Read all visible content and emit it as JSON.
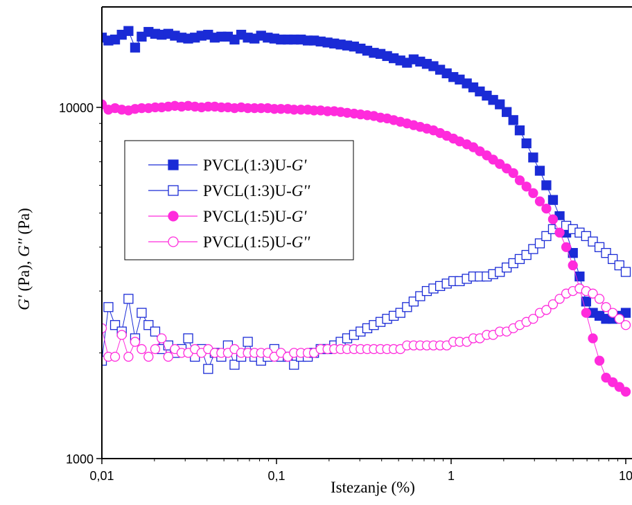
{
  "chart_data": {
    "type": "scatter",
    "xlabel": "Istezanje (%)",
    "ylabel": "G' (Pa), G'' (Pa)",
    "ylabel_parts": {
      "g1": "G'",
      "u1": " (Pa), ",
      "g2": "G''",
      "u2": " (Pa)"
    },
    "x_scale": "log",
    "y_scale": "log",
    "xlim": [
      0.01,
      10
    ],
    "ylim": [
      1000,
      20000
    ],
    "x_tick_labels": [
      "0,01",
      "0,1",
      "1",
      "10"
    ],
    "x_tick_values": [
      0.01,
      0.1,
      1,
      10
    ],
    "y_tick_labels": [
      "1000",
      "10000"
    ],
    "y_tick_values": [
      1000,
      10000
    ],
    "grid": false,
    "legend_position": "center-left",
    "series": [
      {
        "name": "PVCL(1:3)U-G'",
        "label_prefix": "PVCL(1:3)U-",
        "label_var": "G'",
        "color": "#1a2bd6",
        "marker": "square",
        "filled": true,
        "x": [
          0.01,
          0.0109,
          0.0119,
          0.013,
          0.0142,
          0.0155,
          0.0169,
          0.0185,
          0.0202,
          0.022,
          0.024,
          0.0262,
          0.0286,
          0.0312,
          0.0341,
          0.0372,
          0.0406,
          0.0443,
          0.0483,
          0.0527,
          0.0575,
          0.0628,
          0.0685,
          0.0748,
          0.0816,
          0.0891,
          0.0972,
          0.106,
          0.116,
          0.126,
          0.138,
          0.151,
          0.164,
          0.179,
          0.196,
          0.214,
          0.233,
          0.254,
          0.278,
          0.303,
          0.331,
          0.361,
          0.394,
          0.43,
          0.469,
          0.512,
          0.559,
          0.61,
          0.665,
          0.726,
          0.792,
          0.865,
          0.944,
          1.03,
          1.12,
          1.23,
          1.34,
          1.46,
          1.6,
          1.74,
          1.9,
          2.08,
          2.27,
          2.47,
          2.7,
          2.95,
          3.22,
          3.51,
          3.83,
          4.18,
          4.56,
          4.98,
          5.44,
          5.93,
          6.48,
          7.07,
          7.71,
          8.42,
          9.19,
          10.0
        ],
        "y": [
          15800,
          15500,
          15600,
          16100,
          16500,
          14800,
          15900,
          16400,
          16200,
          16100,
          16200,
          16000,
          15800,
          15700,
          15800,
          16000,
          16100,
          15800,
          15900,
          15900,
          15600,
          16100,
          15800,
          15700,
          16000,
          15800,
          15700,
          15600,
          15600,
          15600,
          15600,
          15500,
          15500,
          15400,
          15300,
          15200,
          15100,
          15000,
          14900,
          14700,
          14500,
          14300,
          14200,
          14000,
          13800,
          13600,
          13400,
          13700,
          13500,
          13300,
          13100,
          12800,
          12500,
          12200,
          12000,
          11700,
          11400,
          11100,
          10800,
          10500,
          10200,
          9700,
          9200,
          8600,
          7900,
          7200,
          6600,
          6000,
          5450,
          4900,
          4400,
          3850,
          3300,
          2800,
          2600,
          2550,
          2500,
          2500,
          2550,
          2600
        ]
      },
      {
        "name": "PVCL(1:3)U-G''",
        "label_prefix": "PVCL(1:3)U-",
        "label_var": "G''",
        "color": "#1a2bd6",
        "marker": "square",
        "filled": false,
        "x": [
          0.01,
          0.0109,
          0.0119,
          0.013,
          0.0142,
          0.0155,
          0.0169,
          0.0185,
          0.0202,
          0.022,
          0.024,
          0.0262,
          0.0286,
          0.0312,
          0.0341,
          0.0372,
          0.0406,
          0.0443,
          0.0483,
          0.0527,
          0.0575,
          0.0628,
          0.0685,
          0.0748,
          0.0816,
          0.0891,
          0.0972,
          0.106,
          0.116,
          0.126,
          0.138,
          0.151,
          0.164,
          0.179,
          0.196,
          0.214,
          0.233,
          0.254,
          0.278,
          0.303,
          0.331,
          0.361,
          0.394,
          0.43,
          0.469,
          0.512,
          0.559,
          0.61,
          0.665,
          0.726,
          0.792,
          0.865,
          0.944,
          1.03,
          1.12,
          1.23,
          1.34,
          1.46,
          1.6,
          1.74,
          1.9,
          2.08,
          2.27,
          2.47,
          2.7,
          2.95,
          3.22,
          3.51,
          3.83,
          4.18,
          4.56,
          4.98,
          5.44,
          5.93,
          6.48,
          7.07,
          7.71,
          8.42,
          9.19,
          10.0
        ],
        "y": [
          1900,
          2700,
          2400,
          2300,
          2850,
          2200,
          2600,
          2400,
          2300,
          2050,
          2100,
          2000,
          2050,
          2200,
          1950,
          2050,
          1800,
          2000,
          1950,
          2100,
          1850,
          1950,
          2150,
          1950,
          1900,
          1950,
          2050,
          1950,
          1950,
          1850,
          1950,
          1950,
          2000,
          2050,
          2050,
          2100,
          2150,
          2200,
          2250,
          2300,
          2350,
          2400,
          2450,
          2500,
          2550,
          2600,
          2700,
          2800,
          2900,
          3000,
          3050,
          3100,
          3150,
          3200,
          3200,
          3250,
          3300,
          3300,
          3300,
          3350,
          3400,
          3500,
          3600,
          3700,
          3800,
          3950,
          4100,
          4300,
          4500,
          4650,
          4600,
          4500,
          4400,
          4300,
          4150,
          4000,
          3850,
          3700,
          3550,
          3400
        ]
      },
      {
        "name": "PVCL(1:5)U-G'",
        "label_prefix": "PVCL(1:5)U-",
        "label_var": "G'",
        "color": "#ff2bdc",
        "marker": "circle",
        "filled": true,
        "x": [
          0.01,
          0.0109,
          0.0119,
          0.013,
          0.0142,
          0.0155,
          0.0169,
          0.0185,
          0.0202,
          0.022,
          0.024,
          0.0262,
          0.0286,
          0.0312,
          0.0341,
          0.0372,
          0.0406,
          0.0443,
          0.0483,
          0.0527,
          0.0575,
          0.0628,
          0.0685,
          0.0748,
          0.0816,
          0.0891,
          0.0972,
          0.106,
          0.116,
          0.126,
          0.138,
          0.151,
          0.164,
          0.179,
          0.196,
          0.214,
          0.233,
          0.254,
          0.278,
          0.303,
          0.331,
          0.361,
          0.394,
          0.43,
          0.469,
          0.512,
          0.559,
          0.61,
          0.665,
          0.726,
          0.792,
          0.865,
          0.944,
          1.03,
          1.12,
          1.23,
          1.34,
          1.46,
          1.6,
          1.74,
          1.9,
          2.08,
          2.27,
          2.47,
          2.7,
          2.95,
          3.22,
          3.51,
          3.83,
          4.18,
          4.56,
          4.98,
          5.44,
          5.93,
          6.48,
          7.07,
          7.71,
          8.42,
          9.19,
          10.0
        ],
        "y": [
          10200,
          9850,
          9950,
          9850,
          9800,
          9900,
          9950,
          9950,
          10000,
          10000,
          10050,
          10100,
          10050,
          10100,
          10050,
          10000,
          10050,
          10050,
          10000,
          10000,
          9950,
          10000,
          9950,
          9950,
          9950,
          9950,
          9900,
          9900,
          9900,
          9850,
          9850,
          9850,
          9800,
          9800,
          9750,
          9750,
          9700,
          9650,
          9600,
          9550,
          9500,
          9450,
          9350,
          9300,
          9200,
          9100,
          9000,
          8900,
          8800,
          8700,
          8600,
          8450,
          8300,
          8150,
          8000,
          7850,
          7700,
          7500,
          7300,
          7100,
          6900,
          6700,
          6500,
          6200,
          5950,
          5700,
          5400,
          5150,
          4800,
          4400,
          4000,
          3550,
          3050,
          2600,
          2200,
          1900,
          1700,
          1650,
          1600,
          1550
        ]
      },
      {
        "name": "PVCL(1:5)U-G''",
        "label_prefix": "PVCL(1:5)U-",
        "label_var": "G''",
        "color": "#ff2bdc",
        "marker": "circle",
        "filled": false,
        "x": [
          0.01,
          0.0109,
          0.0119,
          0.013,
          0.0142,
          0.0155,
          0.0169,
          0.0185,
          0.0202,
          0.022,
          0.024,
          0.0262,
          0.0286,
          0.0312,
          0.0341,
          0.0372,
          0.0406,
          0.0443,
          0.0483,
          0.0527,
          0.0575,
          0.0628,
          0.0685,
          0.0748,
          0.0816,
          0.0891,
          0.0972,
          0.106,
          0.116,
          0.126,
          0.138,
          0.151,
          0.164,
          0.179,
          0.196,
          0.214,
          0.233,
          0.254,
          0.278,
          0.303,
          0.331,
          0.361,
          0.394,
          0.43,
          0.469,
          0.512,
          0.559,
          0.61,
          0.665,
          0.726,
          0.792,
          0.865,
          0.944,
          1.03,
          1.12,
          1.23,
          1.34,
          1.46,
          1.6,
          1.74,
          1.9,
          2.08,
          2.27,
          2.47,
          2.7,
          2.95,
          3.22,
          3.51,
          3.83,
          4.18,
          4.56,
          4.98,
          5.44,
          5.93,
          6.48,
          7.07,
          7.71,
          8.42,
          9.19,
          10.0
        ],
        "y": [
          2350,
          1950,
          1950,
          2250,
          1950,
          2150,
          2050,
          1950,
          2050,
          2200,
          1950,
          2050,
          2000,
          2000,
          2050,
          2000,
          2050,
          2000,
          2000,
          2000,
          2050,
          2000,
          2000,
          2000,
          2000,
          2000,
          1950,
          2000,
          1950,
          2000,
          2000,
          2000,
          2000,
          2050,
          2050,
          2050,
          2050,
          2050,
          2050,
          2050,
          2050,
          2050,
          2050,
          2050,
          2050,
          2050,
          2100,
          2100,
          2100,
          2100,
          2100,
          2100,
          2100,
          2150,
          2150,
          2150,
          2200,
          2200,
          2250,
          2250,
          2300,
          2300,
          2350,
          2400,
          2450,
          2500,
          2600,
          2650,
          2750,
          2850,
          2950,
          3000,
          3050,
          3000,
          2950,
          2850,
          2700,
          2600,
          2500,
          2400
        ]
      }
    ]
  }
}
